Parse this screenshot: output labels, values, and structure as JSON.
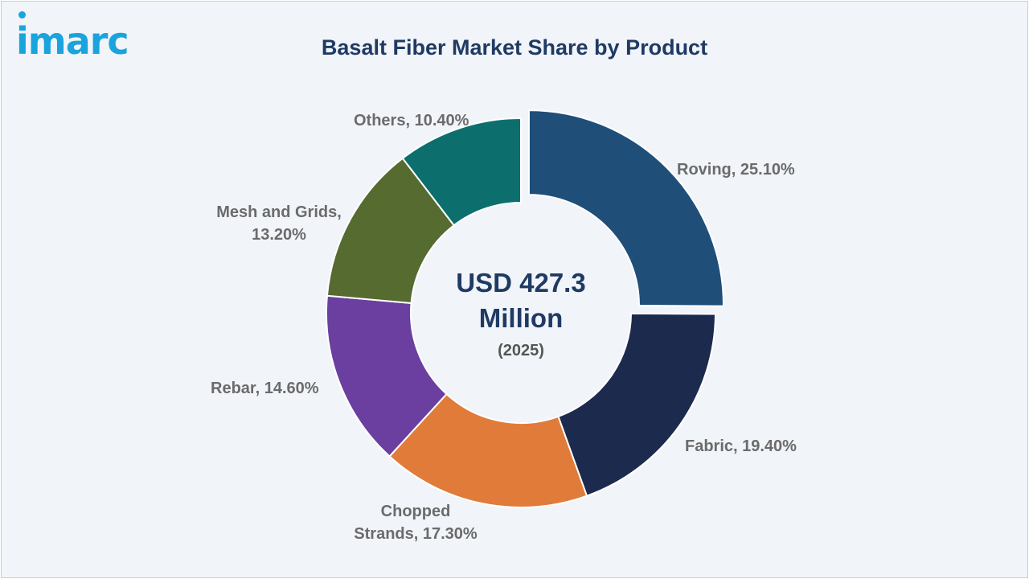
{
  "brand": {
    "logo_text": "imarc",
    "color": "#1aa4dd"
  },
  "title": "Basalt Fiber Market Share by Product",
  "center": {
    "value": "USD 427.3 Million",
    "year": "(2025)"
  },
  "chart_data": {
    "type": "pie",
    "variant": "donut",
    "title": "Basalt Fiber Market Share by Product",
    "unit": "%",
    "categories": [
      "Roving",
      "Fabric",
      "Chopped Strands",
      "Rebar",
      "Mesh and Grids",
      "Others"
    ],
    "values": [
      25.1,
      19.4,
      17.3,
      14.6,
      13.2,
      10.4
    ],
    "labels": [
      "Roving, 25.10%",
      "Fabric, 19.40%",
      "Chopped Strands, 17.30%",
      "Rebar, 14.60%",
      "Mesh and Grids, 13.20%",
      "Others, 10.40%"
    ],
    "colors": [
      "#1f4e79",
      "#1c2a4d",
      "#e07b39",
      "#6a3fa0",
      "#556b2f",
      "#0d6e6e"
    ],
    "exploded": "Roving"
  }
}
